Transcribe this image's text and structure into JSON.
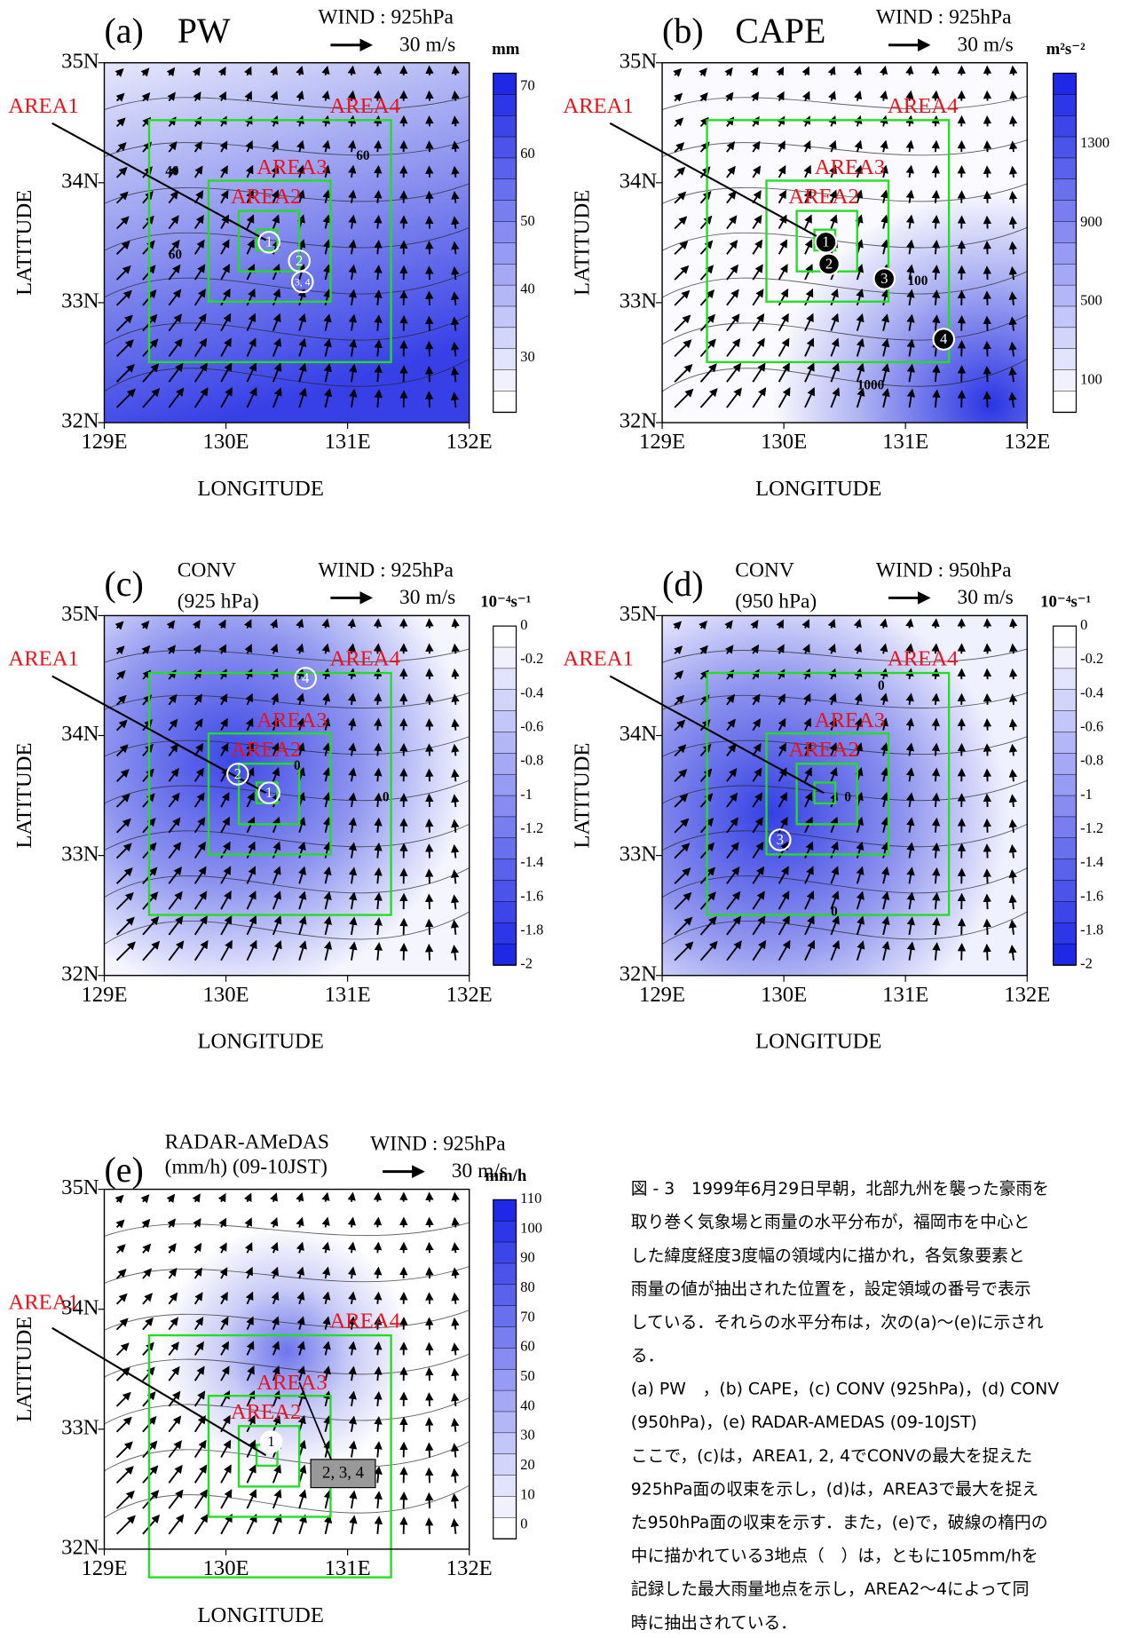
{
  "panels": [
    {
      "label": "(a)",
      "title_lines": [
        "PW"
      ],
      "wind_title": "WIND : 925hPa",
      "wind_scale": "30 m/s",
      "unit": "mm",
      "colorbar_ticks": [
        "70",
        "60",
        "50",
        "40",
        "30"
      ],
      "area_labels": [
        "AREA1",
        "AREA2",
        "AREA3",
        "AREA4"
      ],
      "markers": [
        "1",
        "2",
        "3, 4"
      ],
      "contour_labels": [
        "40",
        "60",
        "60"
      ],
      "x_ticks": [
        "129E",
        "130E",
        "131E",
        "132E"
      ],
      "y_ticks": [
        "35N",
        "34N",
        "33N",
        "32N"
      ],
      "x_label": "LONGITUDE",
      "y_label": "LATITUDE"
    },
    {
      "label": "(b)",
      "title_lines": [
        "CAPE"
      ],
      "wind_title": "WIND : 925hPa",
      "wind_scale": "30 m/s",
      "unit": "m²s⁻²",
      "colorbar_ticks": [
        "1300",
        "900",
        "500",
        "100"
      ],
      "area_labels": [
        "AREA1",
        "AREA2",
        "AREA3",
        "AREA4"
      ],
      "markers": [
        "1",
        "2",
        "3",
        "4"
      ],
      "contour_labels": [
        "100",
        "1000"
      ],
      "x_ticks": [
        "129E",
        "130E",
        "131E",
        "132E"
      ],
      "y_ticks": [
        "35N",
        "34N",
        "33N",
        "32N"
      ],
      "x_label": "LONGITUDE",
      "y_label": "LATITUDE"
    },
    {
      "label": "(c)",
      "title_lines": [
        "CONV",
        "(925 hPa)"
      ],
      "wind_title": "WIND : 925hPa",
      "wind_scale": "30 m/s",
      "unit": "10⁻⁴s⁻¹",
      "colorbar_ticks": [
        "0",
        "-0.2",
        "-0.4",
        "-0.6",
        "-0.8",
        "-1",
        "-1.2",
        "-1.4",
        "-1.6",
        "-1.8",
        "-2"
      ],
      "area_labels": [
        "AREA1",
        "AREA2",
        "AREA3",
        "AREA4"
      ],
      "markers": [
        "4",
        "2",
        "1"
      ],
      "contour_labels": [
        "0",
        "0"
      ],
      "x_ticks": [
        "129E",
        "130E",
        "131E",
        "132E"
      ],
      "y_ticks": [
        "35N",
        "34N",
        "33N",
        "32N"
      ],
      "x_label": "LONGITUDE",
      "y_label": "LATITUDE"
    },
    {
      "label": "(d)",
      "title_lines": [
        "CONV",
        "(950 hPa)"
      ],
      "wind_title": "WIND : 950hPa",
      "wind_scale": "30 m/s",
      "unit": "10⁻⁴s⁻¹",
      "colorbar_ticks": [
        "0",
        "-0.2",
        "-0.4",
        "-0.6",
        "-0.8",
        "-1",
        "-1.2",
        "-1.4",
        "-1.6",
        "-1.8",
        "-2"
      ],
      "area_labels": [
        "AREA1",
        "AREA2",
        "AREA3",
        "AREA4"
      ],
      "markers": [
        "3"
      ],
      "contour_labels": [
        "0",
        "0",
        "0"
      ],
      "x_ticks": [
        "129E",
        "130E",
        "131E",
        "132E"
      ],
      "y_ticks": [
        "35N",
        "34N",
        "33N",
        "32N"
      ],
      "x_label": "LONGITUDE",
      "y_label": "LATITUDE"
    },
    {
      "label": "(e)",
      "title_lines": [
        "RADAR-AMeDAS",
        "(mm/h)  (09-10JST)"
      ],
      "wind_title": "WIND : 925hPa",
      "wind_scale": "30 m/s",
      "unit": "mm/h",
      "colorbar_ticks": [
        "110",
        "100",
        "90",
        "80",
        "70",
        "60",
        "50",
        "40",
        "30",
        "20",
        "10",
        "0"
      ],
      "area_labels": [
        "AREA1",
        "AREA2",
        "AREA3",
        "AREA4"
      ],
      "markers": [
        "1"
      ],
      "contour_labels": [],
      "callout": "2, 3, 4",
      "x_ticks": [
        "129E",
        "130E",
        "131E",
        "132E"
      ],
      "y_ticks": [
        "35N",
        "34N",
        "33N",
        "32N"
      ],
      "x_label": "LONGITUDE",
      "y_label": "LATITUDE"
    }
  ],
  "caption": [
    "図 - 3　1999年6月29日早朝，北部九州を襲った豪雨を",
    "取り巻く気象場と雨量の水平分布が，福岡市を中心と",
    "した緯度経度3度幅の領域内に描かれ，各気象要素と",
    "雨量の値が抽出された位置を，設定領域の番号で表示",
    "している．それらの水平分布は，次の(a)～(e)に示され",
    "る．",
    "(a) PW　，(b) CAPE，(c) CONV (925hPa)，(d) CONV",
    "(950hPa)，(e) RADAR-AMEDAS (09-10JST)",
    "ここで，(c)は，AREA1, 2, 4でCONVの最大を捉えた",
    "925hPa面の収束を示し，(d)は，AREA3で最大を捉え",
    "た950hPa面の収束を示す．また，(e)で，破線の楕円の",
    "中に描かれている3地点（　）は，ともに105mm/hを",
    "記録した最大雨量地点を示し，AREA2～4によって同",
    "時に抽出されている．"
  ]
}
